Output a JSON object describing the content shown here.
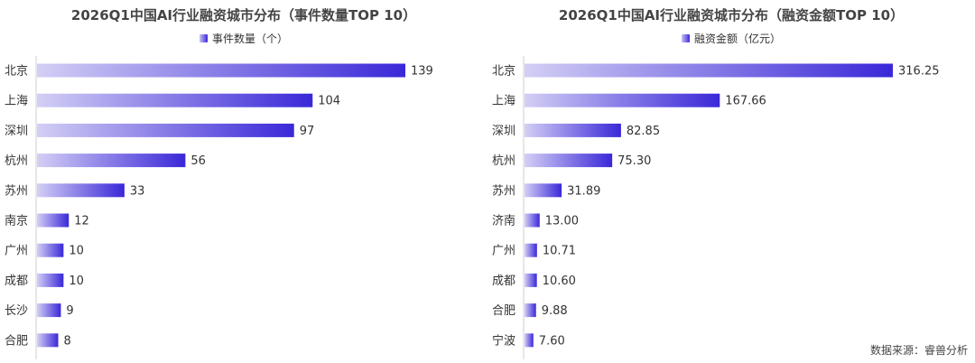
{
  "chart_data": [
    {
      "type": "bar",
      "orientation": "horizontal",
      "title": "2026Q1中国AI行业融资城市分布（事件数量TOP 10）",
      "categories": [
        "北京",
        "上海",
        "深圳",
        "杭州",
        "苏州",
        "南京",
        "广州",
        "成都",
        "长沙",
        "合肥"
      ],
      "series": [
        {
          "name": "事件数量（个）",
          "values": [
            139,
            104,
            97,
            56,
            33,
            12,
            10,
            10,
            9,
            8
          ]
        }
      ],
      "value_labels": [
        "139",
        "104",
        "97",
        "56",
        "33",
        "12",
        "10",
        "10",
        "9",
        "8"
      ],
      "xlim": [
        0,
        139
      ],
      "legend_position": "top-center",
      "grid": false,
      "bar_color_start": "#d3cff5",
      "bar_color_end": "#3a28d8"
    },
    {
      "type": "bar",
      "orientation": "horizontal",
      "title": "2026Q1中国AI行业融资城市分布（融资金额TOP 10）",
      "categories": [
        "北京",
        "上海",
        "深圳",
        "杭州",
        "苏州",
        "济南",
        "广州",
        "成都",
        "合肥",
        "宁波"
      ],
      "series": [
        {
          "name": "融资金额（亿元）",
          "values": [
            316.25,
            167.66,
            82.85,
            75.3,
            31.89,
            13.0,
            10.71,
            10.6,
            9.88,
            7.6
          ]
        }
      ],
      "value_labels": [
        "316.25",
        "167.66",
        "82.85",
        "75.30",
        "31.89",
        "13.00",
        "10.71",
        "10.60",
        "9.88",
        "7.60"
      ],
      "xlim": [
        0,
        316.25
      ],
      "legend_position": "top-center",
      "grid": false,
      "bar_color_start": "#d3cff5",
      "bar_color_end": "#3a28d8"
    }
  ],
  "source_note": "数据来源：睿兽分析"
}
